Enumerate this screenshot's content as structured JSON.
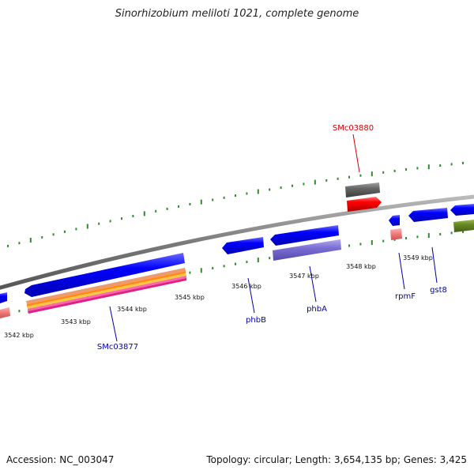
{
  "title": "Sinorhizobium meliloti 1021, complete genome",
  "footer": {
    "accession": "Accession: NC_003047",
    "summary": "Topology: circular; Length: 3,654,135 bp; Genes: 3,425"
  },
  "ticks": [
    {
      "label": "3542 kbp"
    },
    {
      "label": "3543 kbp"
    },
    {
      "label": "3544 kbp"
    },
    {
      "label": "3545 kbp"
    },
    {
      "label": "3546 kbp"
    },
    {
      "label": "3547 kbp"
    },
    {
      "label": "3548 kbp"
    },
    {
      "label": "3549 kbp"
    }
  ],
  "gene_labels": [
    {
      "label": "SMc03880",
      "color": "#d40000"
    },
    {
      "label": "SMc03877",
      "color": "#0000aa"
    },
    {
      "label": "phbB",
      "color": "#0000aa"
    },
    {
      "label": "phbA",
      "color": "#0000aa"
    },
    {
      "label": "rpmF",
      "color": "#0000aa"
    },
    {
      "label": "gst8",
      "color": "#0000aa"
    }
  ],
  "colors": {
    "gene": "#0000ff",
    "highlight_gene": "#ff0000",
    "grey_feature": "#666666",
    "purple_feature": "#7b6fd6",
    "pink_feature": "#ee7777",
    "olive_feature": "#668822",
    "tick": "#2e8b2e",
    "backbone": "#888888"
  }
}
